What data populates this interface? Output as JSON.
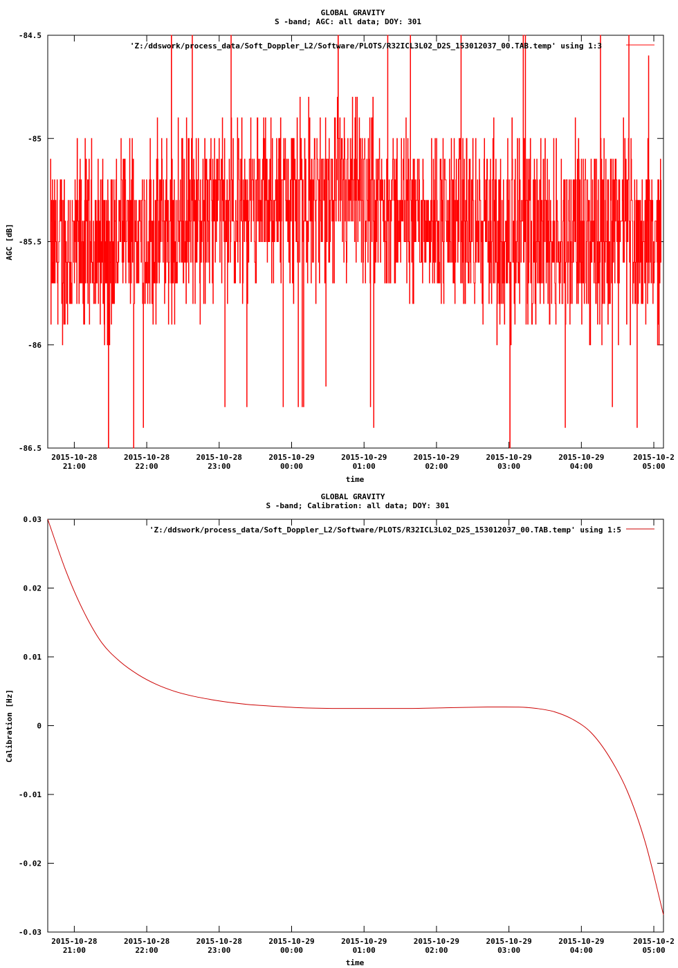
{
  "chart_data": [
    {
      "type": "line",
      "title": "GLOBAL GRAVITY",
      "subtitle": "S -band; AGC: all data; DOY: 301",
      "xlabel": "time",
      "ylabel": "AGC [dB]",
      "ylim": [
        -86.5,
        -84.5
      ],
      "yticks": [
        "-84.5",
        "-85",
        "-85.5",
        "-86",
        "-86.5"
      ],
      "xticks": [
        [
          "2015-10-28",
          "21:00"
        ],
        [
          "2015-10-28",
          "22:00"
        ],
        [
          "2015-10-28",
          "23:00"
        ],
        [
          "2015-10-29",
          "00:00"
        ],
        [
          "2015-10-29",
          "01:00"
        ],
        [
          "2015-10-29",
          "02:00"
        ],
        [
          "2015-10-29",
          "03:00"
        ],
        [
          "2015-10-29",
          "04:00"
        ],
        [
          "2015-10-2",
          "05:00"
        ]
      ],
      "legend": "'Z:/ddswork/process_data/Soft_Doppler_L2/Software/PLOTS/R32ICL3L02_D2S_153012037_00.TAB.temp' using 1:3",
      "legend_position": "top-right",
      "color": "#ff0000",
      "x_range": [
        "2015-10-28 20:38",
        "2015-10-29 05:08"
      ],
      "series": [
        {
          "x": [
            "2015-10-28 20:40",
            "2015-10-28 21:00",
            "2015-10-28 21:30",
            "2015-10-28 22:00",
            "2015-10-28 22:30",
            "2015-10-28 23:00",
            "2015-10-28 23:30",
            "2015-10-29 00:00",
            "2015-10-29 00:30",
            "2015-10-29 01:00",
            "2015-10-29 01:30",
            "2015-10-29 02:00",
            "2015-10-29 02:30",
            "2015-10-29 03:00",
            "2015-10-29 03:30",
            "2015-10-29 04:00",
            "2015-10-29 04:30",
            "2015-10-29 05:00"
          ],
          "mean": [
            -85.55,
            -85.55,
            -85.5,
            -85.45,
            -85.4,
            -85.35,
            -85.3,
            -85.3,
            -85.3,
            -85.3,
            -85.35,
            -85.35,
            -85.45,
            -85.45,
            -85.45,
            -85.45,
            -85.4,
            -85.5
          ],
          "spread": [
            0.5,
            0.6,
            0.55,
            0.55,
            0.55,
            0.5,
            0.5,
            0.55,
            0.55,
            0.55,
            0.5,
            0.5,
            0.55,
            0.6,
            0.6,
            0.6,
            0.6,
            0.55
          ]
        }
      ]
    },
    {
      "type": "line",
      "title": "GLOBAL GRAVITY",
      "subtitle": "S -band; Calibration: all data; DOY: 301",
      "xlabel": "time",
      "ylabel": "Calibration [Hz]",
      "ylim": [
        -0.03,
        0.03
      ],
      "yticks": [
        "0.03",
        "0.02",
        "0.01",
        "0",
        "-0.01",
        "-0.02",
        "-0.03"
      ],
      "xticks": [
        [
          "2015-10-28",
          "21:00"
        ],
        [
          "2015-10-28",
          "22:00"
        ],
        [
          "2015-10-28",
          "23:00"
        ],
        [
          "2015-10-29",
          "00:00"
        ],
        [
          "2015-10-29",
          "01:00"
        ],
        [
          "2015-10-29",
          "02:00"
        ],
        [
          "2015-10-29",
          "03:00"
        ],
        [
          "2015-10-29",
          "04:00"
        ],
        [
          "2015-10-2",
          "05:00"
        ]
      ],
      "legend": "'Z:/ddswork/process_data/Soft_Doppler_L2/Software/PLOTS/R32ICL3L02_D2S_153012037_00.TAB.temp' using 1:5",
      "legend_position": "top-right",
      "color": "#cc0000",
      "x_range": [
        "2015-10-28 20:38",
        "2015-10-29 05:08"
      ],
      "series": [
        {
          "x": [
            "2015-10-28 20:38",
            "2015-10-28 20:53",
            "2015-10-28 21:08",
            "2015-10-28 21:23",
            "2015-10-28 21:38",
            "2015-10-28 21:53",
            "2015-10-28 22:08",
            "2015-10-28 22:23",
            "2015-10-28 22:38",
            "2015-10-28 22:53",
            "2015-10-28 23:08",
            "2015-10-28 23:23",
            "2015-10-28 23:38",
            "2015-10-29 00:08",
            "2015-10-29 00:38",
            "2015-10-29 01:08",
            "2015-10-29 01:38",
            "2015-10-29 02:08",
            "2015-10-29 02:38",
            "2015-10-29 03:08",
            "2015-10-29 03:23",
            "2015-10-29 03:38",
            "2015-10-29 03:53",
            "2015-10-29 04:08",
            "2015-10-29 04:23",
            "2015-10-29 04:38",
            "2015-10-29 04:53",
            "2015-10-29 05:08"
          ],
          "values": [
            0.03,
            0.0225,
            0.0165,
            0.012,
            0.0093,
            0.0074,
            0.006,
            0.005,
            0.0043,
            0.0038,
            0.0034,
            0.0031,
            0.0029,
            0.0026,
            0.0025,
            0.0025,
            0.0025,
            0.0026,
            0.0027,
            0.0027,
            0.0025,
            0.002,
            0.0009,
            -0.001,
            -0.0045,
            -0.0095,
            -0.017,
            -0.0275
          ]
        }
      ]
    }
  ]
}
